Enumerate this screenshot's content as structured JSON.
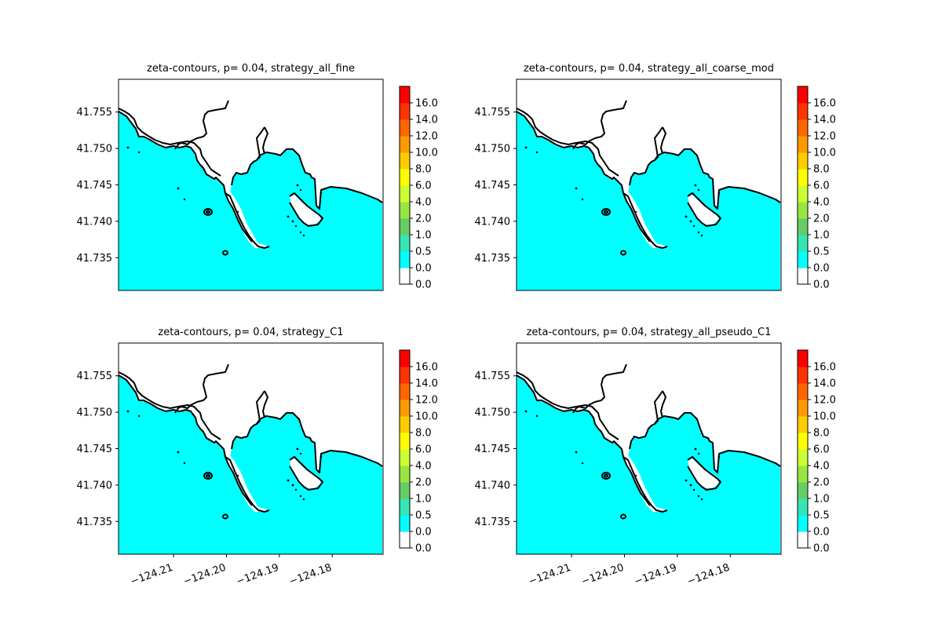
{
  "chart_data": [
    {
      "type": "contour",
      "title": "zeta-contours, p= 0.04, strategy_all_fine",
      "ylim": [
        41.7305,
        41.7595
      ],
      "xlim": [
        -124.2204,
        -124.1704
      ],
      "y_ticks": [
        "41.735",
        "41.740",
        "41.745",
        "41.750",
        "41.755"
      ],
      "y_tick_values": [
        41.735,
        41.74,
        41.745,
        41.75,
        41.755
      ],
      "x_ticks": [],
      "colorbar": {
        "levels": [
          "0.0",
          "0.0",
          "0.5",
          "1.0",
          "2.0",
          "4.0",
          "6.0",
          "8.0",
          "10.0",
          "12.0",
          "14.0",
          "16.0"
        ],
        "colors": [
          "#ffffff",
          "#00ffff",
          "#33e6b3",
          "#66cc66",
          "#99e640",
          "#ccff33",
          "#ffff00",
          "#ffcc00",
          "#ff9900",
          "#ff6600",
          "#ff3300",
          "#ff0000"
        ]
      }
    },
    {
      "type": "contour",
      "title": "zeta-contours, p= 0.04, strategy_all_coarse_mod",
      "ylim": [
        41.7305,
        41.7595
      ],
      "xlim": [
        -124.2204,
        -124.1704
      ],
      "y_ticks": [
        "41.735",
        "41.740",
        "41.745",
        "41.750",
        "41.755"
      ],
      "y_tick_values": [
        41.735,
        41.74,
        41.745,
        41.75,
        41.755
      ],
      "x_ticks": [],
      "colorbar": {
        "levels": [
          "0.0",
          "0.0",
          "0.5",
          "1.0",
          "2.0",
          "4.0",
          "6.0",
          "8.0",
          "10.0",
          "12.0",
          "14.0",
          "16.0"
        ],
        "colors": [
          "#ffffff",
          "#00ffff",
          "#33e6b3",
          "#66cc66",
          "#99e640",
          "#ccff33",
          "#ffff00",
          "#ffcc00",
          "#ff9900",
          "#ff6600",
          "#ff3300",
          "#ff0000"
        ]
      }
    },
    {
      "type": "contour",
      "title": "zeta-contours, p= 0.04, strategy_C1",
      "ylim": [
        41.7305,
        41.7595
      ],
      "xlim": [
        -124.2204,
        -124.1704
      ],
      "y_ticks": [
        "41.735",
        "41.740",
        "41.745",
        "41.750",
        "41.755"
      ],
      "y_tick_values": [
        41.735,
        41.74,
        41.745,
        41.75,
        41.755
      ],
      "x_ticks": [
        "−124.21",
        "−124.20",
        "−124.19",
        "−124.18"
      ],
      "x_tick_values": [
        -124.21,
        -124.2,
        -124.19,
        -124.18
      ],
      "colorbar": {
        "levels": [
          "0.0",
          "0.0",
          "0.5",
          "1.0",
          "2.0",
          "4.0",
          "6.0",
          "8.0",
          "10.0",
          "12.0",
          "14.0",
          "16.0"
        ],
        "colors": [
          "#ffffff",
          "#00ffff",
          "#33e6b3",
          "#66cc66",
          "#99e640",
          "#ccff33",
          "#ffff00",
          "#ffcc00",
          "#ff9900",
          "#ff6600",
          "#ff3300",
          "#ff0000"
        ]
      }
    },
    {
      "type": "contour",
      "title": "zeta-contours, p= 0.04, strategy_all_pseudo_C1",
      "ylim": [
        41.7305,
        41.7595
      ],
      "xlim": [
        -124.2204,
        -124.1704
      ],
      "y_ticks": [
        "41.735",
        "41.740",
        "41.745",
        "41.750",
        "41.755"
      ],
      "y_tick_values": [
        41.735,
        41.74,
        41.745,
        41.75,
        41.755
      ],
      "x_ticks": [
        "−124.21",
        "−124.20",
        "−124.19",
        "−124.18"
      ],
      "x_tick_values": [
        -124.21,
        -124.2,
        -124.19,
        -124.18
      ],
      "colorbar": {
        "levels": [
          "0.0",
          "0.0",
          "0.5",
          "1.0",
          "2.0",
          "4.0",
          "6.0",
          "8.0",
          "10.0",
          "12.0",
          "14.0",
          "16.0"
        ],
        "colors": [
          "#ffffff",
          "#00ffff",
          "#33e6b3",
          "#66cc66",
          "#99e640",
          "#ccff33",
          "#ffff00",
          "#ffcc00",
          "#ff9900",
          "#ff6600",
          "#ff3300",
          "#ff0000"
        ]
      }
    }
  ]
}
